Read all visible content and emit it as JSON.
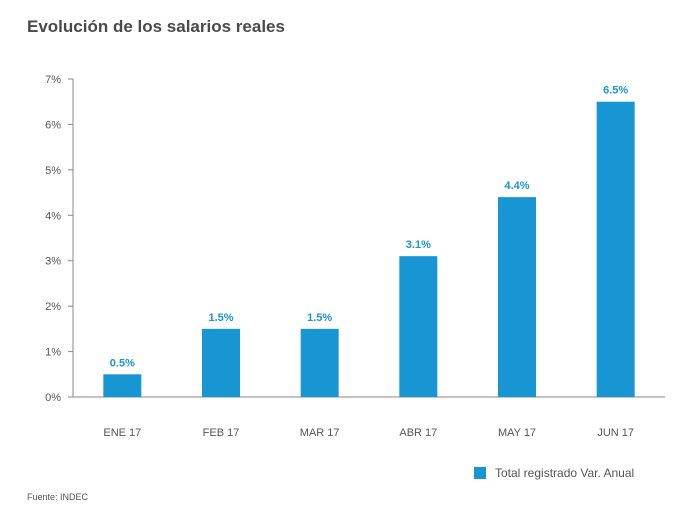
{
  "chart_data": {
    "type": "bar",
    "title": "Evolución de los salarios reales",
    "categories": [
      "ENE 17",
      "FEB 17",
      "MAR 17",
      "ABR 17",
      "MAY 17",
      "JUN 17"
    ],
    "series": [
      {
        "name": "Total registrado Var. Anual",
        "values": [
          0.5,
          1.5,
          1.5,
          3.1,
          4.4,
          6.5
        ]
      }
    ],
    "data_labels": [
      "0.5%",
      "1.5%",
      "1.5%",
      "3.1%",
      "4.4%",
      "6.5%"
    ],
    "y_ticks": [
      "0%",
      "1%",
      "2%",
      "3%",
      "4%",
      "5%",
      "6%",
      "7%"
    ],
    "ylim": [
      0,
      7
    ],
    "grid": false,
    "legend_position": "bottom-right",
    "source": "Fuente: INDEC",
    "colors": {
      "bar": "#1895d3",
      "data_label": "#1895d3",
      "axis": "#888888"
    }
  }
}
